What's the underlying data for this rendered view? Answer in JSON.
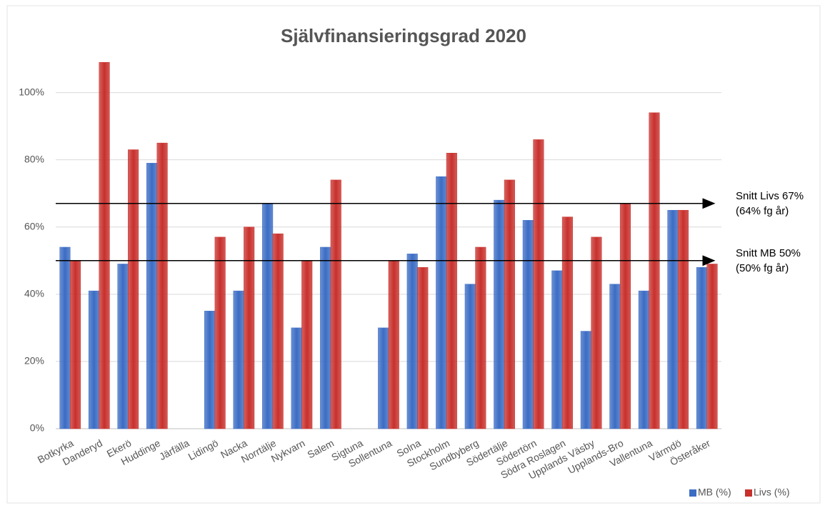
{
  "chart_data": {
    "type": "bar",
    "title": "Självfinansieringsgrad 2020",
    "categories": [
      "Botkyrka",
      "Danderyd",
      "Ekerö",
      "Huddinge",
      "Järfälla",
      "Lidingö",
      "Nacka",
      "Norrtälje",
      "Nykvarn",
      "Salem",
      "Sigtuna",
      "Sollentuna",
      "Solna",
      "Stockholm",
      "Sundbyberg",
      "Södertälje",
      "Södertörn",
      "Södra Roslagen",
      "Upplands Väsby",
      "Upplands-Bro",
      "Vallentuna",
      "Värmdö",
      "Österåker"
    ],
    "series": [
      {
        "name": "MB (%)",
        "color": "#3b6cc4",
        "values": [
          54,
          41,
          49,
          79,
          null,
          35,
          41,
          67,
          30,
          54,
          null,
          30,
          52,
          75,
          43,
          68,
          62,
          47,
          29,
          43,
          41,
          65,
          48
        ]
      },
      {
        "name": "Livs (%)",
        "color": "#c8302c",
        "values": [
          50,
          109,
          83,
          85,
          null,
          57,
          60,
          58,
          50,
          74,
          null,
          50,
          48,
          82,
          54,
          74,
          86,
          63,
          57,
          67,
          94,
          65,
          49
        ]
      }
    ],
    "ylim": [
      0,
      115
    ],
    "yticks": [
      {
        "value": 0,
        "label": "0%"
      },
      {
        "value": 20,
        "label": "20%"
      },
      {
        "value": 40,
        "label": "40%"
      },
      {
        "value": 60,
        "label": "60%"
      },
      {
        "value": 80,
        "label": "80%"
      },
      {
        "value": 100,
        "label": "100%"
      }
    ],
    "grid": true,
    "legend": "bottom-right",
    "reference_lines": [
      {
        "value": 67,
        "label": [
          "Snitt Livs 67%",
          "(64% fg år)"
        ]
      },
      {
        "value": 50,
        "label": [
          "Snitt MB 50%",
          "(50% fg år)"
        ]
      }
    ]
  }
}
